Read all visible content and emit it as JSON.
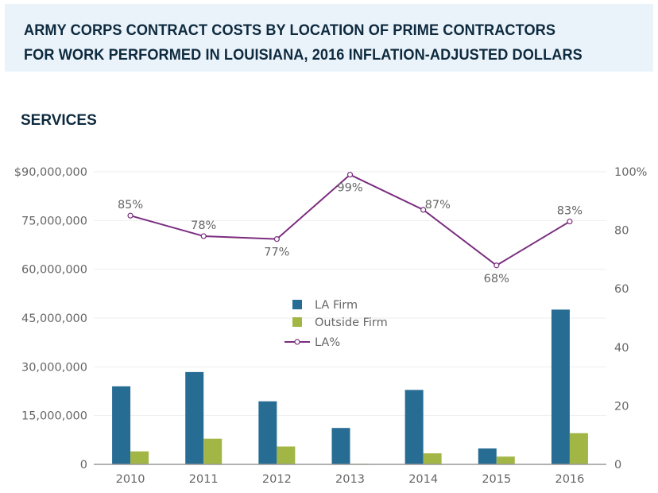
{
  "header": {
    "title_line1": "ARMY CORPS CONTRACT COSTS BY LOCATION OF PRIME CONTRACTORS",
    "title_line2": "FOR WORK PERFORMED IN LOUISIANA, 2016 INFLATION-ADJUSTED DOLLARS",
    "section": "SERVICES"
  },
  "colors": {
    "la_firm": "#276d93",
    "outside_firm": "#a2b646",
    "la_pct": "#7a2d7f",
    "grid": "#eeeeee",
    "axis": "#999999"
  },
  "chart_data": {
    "type": "bar",
    "title": "ARMY CORPS CONTRACT COSTS BY LOCATION OF PRIME CONTRACTORS FOR WORK PERFORMED IN LOUISIANA, 2016 INFLATION-ADJUSTED DOLLARS",
    "subtitle": "SERVICES",
    "categories": [
      "2010",
      "2011",
      "2012",
      "2013",
      "2014",
      "2015",
      "2016"
    ],
    "series": [
      {
        "name": "LA Firm",
        "type": "bar",
        "axis": "left",
        "values": [
          24000000,
          28400000,
          19400000,
          11200000,
          22900000,
          4900000,
          47600000
        ]
      },
      {
        "name": "Outside Firm",
        "type": "bar",
        "axis": "left",
        "values": [
          4000000,
          7900000,
          5500000,
          200000,
          3400000,
          2400000,
          9600000
        ]
      },
      {
        "name": "LA%",
        "type": "line",
        "axis": "right",
        "values": [
          85,
          78,
          77,
          99,
          87,
          68,
          83
        ],
        "labels": [
          "85%",
          "78%",
          "77%",
          "99%",
          "87%",
          "68%",
          "83%"
        ],
        "label_positions": [
          "above",
          "above",
          "below",
          "below",
          "above-right",
          "below",
          "above"
        ]
      }
    ],
    "left_axis": {
      "ylim": [
        0,
        90000000
      ],
      "ticks": [
        0,
        15000000,
        30000000,
        45000000,
        60000000,
        75000000,
        90000000
      ],
      "tick_labels": [
        "0",
        "15,000,000",
        "30,000,000",
        "45,000,000",
        "60,000,000",
        "75,000,000",
        "$90,000,000"
      ]
    },
    "right_axis": {
      "ylim": [
        0,
        100
      ],
      "ticks": [
        0,
        20,
        40,
        60,
        80,
        100
      ],
      "tick_labels": [
        "0",
        "20",
        "40",
        "60",
        "80",
        "100%"
      ]
    },
    "xlabel": "",
    "ylabel": "",
    "grid": true,
    "legend": {
      "position": "center",
      "entries": [
        "LA Firm",
        "Outside Firm",
        "LA%"
      ]
    }
  }
}
